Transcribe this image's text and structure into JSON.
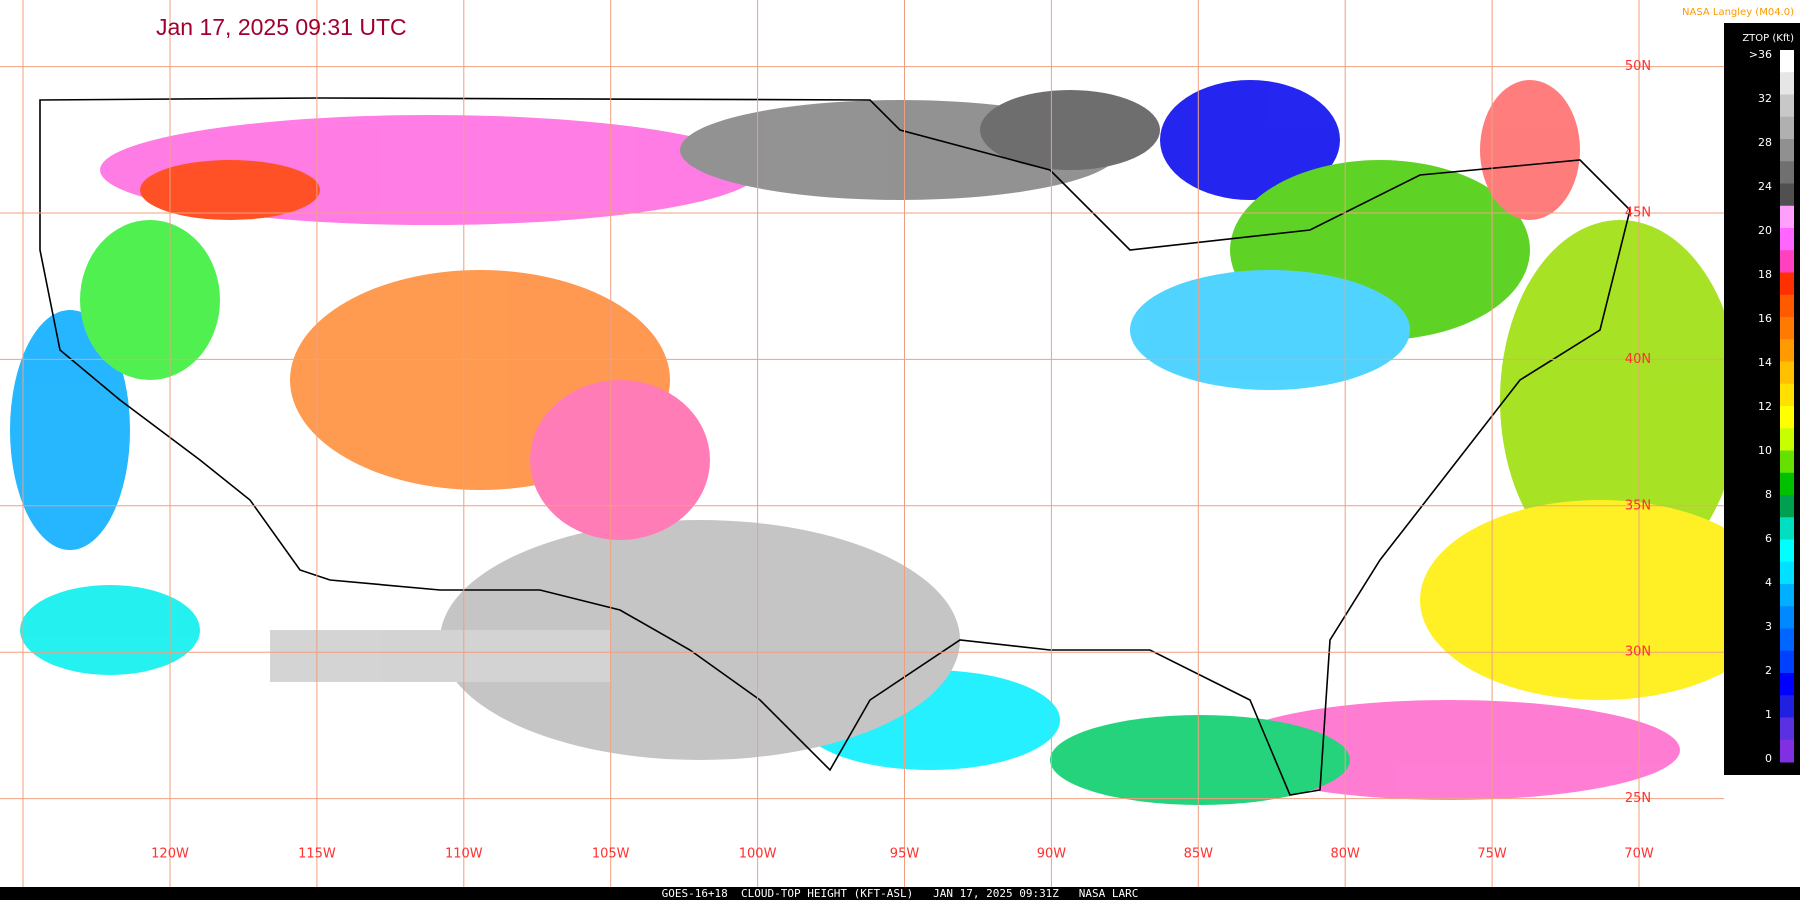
{
  "header": {
    "title": "Jan 17, 2025 09:31 UTC",
    "credit": "NASA Langley (M04.0)"
  },
  "legend": {
    "title": "ZTOP (Kft)",
    "labels": [
      ">36",
      "32",
      "28",
      "24",
      "20",
      "18",
      "16",
      "14",
      "12",
      "10",
      "8",
      "6",
      "4",
      "3",
      "2",
      "1",
      "0"
    ]
  },
  "grid": {
    "longitudes": [
      "120W",
      "115W",
      "110W",
      "105W",
      "100W",
      "95W",
      "90W",
      "85W",
      "80W",
      "75W",
      "70W"
    ],
    "latitudes": [
      "50N",
      "45N",
      "40N",
      "35N",
      "30N",
      "25N"
    ]
  },
  "footer": "GOES-16+18  CLOUD-TOP HEIGHT (KFT-ASL)   JAN 17, 2025 09:31Z   NASA LARC"
}
